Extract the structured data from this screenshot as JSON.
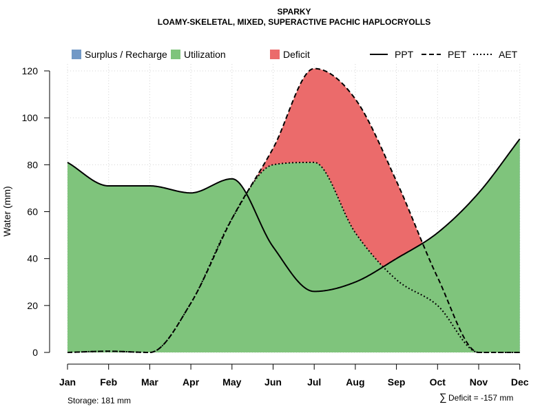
{
  "chart_data": {
    "type": "area",
    "title": "SPARKY",
    "subtitle": "LOAMY-SKELETAL, MIXED, SUPERACTIVE PACHIC HAPLOCRYOLLS",
    "ylabel": "Water (mm)",
    "xlabel": "",
    "ylim": [
      0,
      120
    ],
    "yticks": [
      0,
      20,
      40,
      60,
      80,
      100,
      120
    ],
    "categories": [
      "Jan",
      "Feb",
      "Mar",
      "Apr",
      "May",
      "Jun",
      "Jul",
      "Aug",
      "Sep",
      "Oct",
      "Nov",
      "Dec"
    ],
    "grid": true,
    "legend_placement": "top",
    "series": [
      {
        "name": "PPT",
        "style": "solid",
        "values": [
          81,
          71,
          71,
          68,
          74,
          45,
          26,
          30,
          40,
          51,
          68,
          91
        ]
      },
      {
        "name": "PET",
        "style": "dashed",
        "values": [
          0,
          0.5,
          0,
          21,
          57,
          87,
          121,
          108,
          73,
          32,
          0,
          0
        ]
      },
      {
        "name": "AET",
        "style": "dotted",
        "values": [
          0,
          0.5,
          0,
          21,
          57,
          80,
          81,
          51,
          31,
          20,
          0,
          0
        ]
      }
    ],
    "areas": [
      {
        "name": "Surplus / Recharge",
        "color": "#7299c6"
      },
      {
        "name": "Utilization",
        "color": "#7fc47c"
      },
      {
        "name": "Deficit",
        "color": "#eb6b6b"
      }
    ]
  },
  "footer": {
    "storage": "Storage: 181 mm",
    "deficit_symbol": "∑",
    "deficit": "Deficit = -157 mm"
  }
}
